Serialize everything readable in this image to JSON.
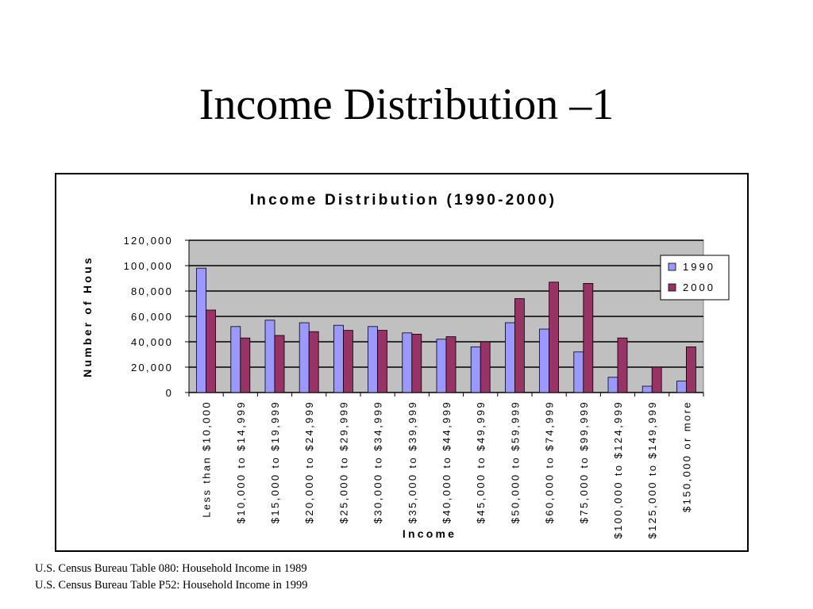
{
  "slide": {
    "title": "Income Distribution –1",
    "sources": [
      "U.S. Census Bureau Table 080: Household Income in 1989",
      "U.S. Census Bureau Table P52: Household Income in 1999"
    ]
  },
  "chart_data": {
    "type": "bar",
    "title": "Income Distribution (1990-2000)",
    "xlabel": "Income",
    "ylabel": "Number of Hous",
    "ylim": [
      0,
      120000
    ],
    "yticks": [
      "0",
      "20,000",
      "40,000",
      "60,000",
      "80,000",
      "100,000",
      "120,000"
    ],
    "grid": true,
    "legend_position": "top-right",
    "categories": [
      "Less than $10,000",
      "$10,000 to $14,999",
      "$15,000 to $19,999",
      "$20,000 to $24,999",
      "$25,000 to $29,999",
      "$30,000 to $34,999",
      "$35,000 to $39,999",
      "$40,000 to $44,999",
      "$45,000 to $49,999",
      "$50,000 to $59,999",
      "$60,000 to $74,999",
      "$75,000 to $99,999",
      "$100,000 to $124,999",
      "$125,000 to $149,999",
      "$150,000 or more"
    ],
    "series": [
      {
        "name": "1990",
        "color": "#9999ff",
        "values": [
          98000,
          52000,
          57000,
          55000,
          53000,
          52000,
          47000,
          42000,
          36000,
          55000,
          50000,
          32000,
          12000,
          5000,
          9000
        ]
      },
      {
        "name": "2000",
        "color": "#993366",
        "values": [
          65000,
          43000,
          45000,
          48000,
          49000,
          49000,
          46000,
          44000,
          40000,
          74000,
          87000,
          86000,
          43000,
          20000,
          36000
        ]
      }
    ],
    "plot_background": "#c0c0c0"
  }
}
